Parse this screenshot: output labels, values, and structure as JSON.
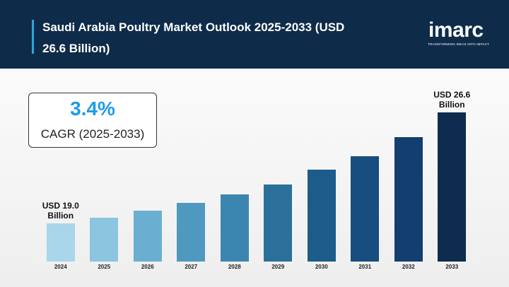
{
  "chart_data": {
    "type": "bar",
    "title": "Saudi Arabia Poultry Market Outlook 2025-2033 (USD 26.6 Billion)",
    "brand": {
      "name": "imarc",
      "tagline": "TRANSFORMING IDEAS INTO IMPACT"
    },
    "cagr": {
      "value": "3.4%",
      "label": "CAGR (2025-2033)"
    },
    "categories": [
      "2024",
      "2025",
      "2026",
      "2027",
      "2028",
      "2029",
      "2030",
      "2031",
      "2032",
      "2033"
    ],
    "values": [
      19.0,
      19.4,
      19.9,
      20.4,
      21.0,
      21.7,
      22.7,
      23.6,
      24.9,
      26.6
    ],
    "value_labels": [
      "USD 19.0 Billion",
      null,
      null,
      null,
      null,
      null,
      null,
      null,
      null,
      "USD 26.6 Billion"
    ],
    "colors": [
      "#a9d6ea",
      "#8cc5df",
      "#6aafd1",
      "#4f99c0",
      "#3b86b1",
      "#2b709b",
      "#1d5b8b",
      "#174d7f",
      "#123f6f",
      "#0e2c4f"
    ],
    "ylim": [
      16.4,
      27.2
    ]
  }
}
